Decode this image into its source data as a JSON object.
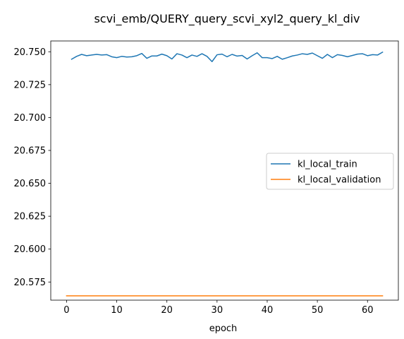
{
  "chart_data": {
    "type": "line",
    "title": "scvi_emb/QUERY_query_scvi_xyl2_query_kl_div",
    "xlabel": "epoch",
    "ylabel": "",
    "xlim": [
      -3.15,
      66.15
    ],
    "ylim": [
      20.5612,
      20.7582
    ],
    "xticks": [
      0,
      10,
      20,
      30,
      40,
      50,
      60
    ],
    "yticks": [
      20.575,
      20.6,
      20.625,
      20.65,
      20.675,
      20.7,
      20.725,
      20.75
    ],
    "ytick_labels": [
      "20.575",
      "20.600",
      "20.625",
      "20.650",
      "20.675",
      "20.700",
      "20.725",
      "20.750"
    ],
    "grid": false,
    "legend_position": "center-right",
    "series": [
      {
        "name": "kl_local_train",
        "color": "#1f77b4",
        "x": [
          1,
          2,
          3,
          4,
          5,
          6,
          7,
          8,
          9,
          10,
          11,
          12,
          13,
          14,
          15,
          16,
          17,
          18,
          19,
          20,
          21,
          22,
          23,
          24,
          25,
          26,
          27,
          28,
          29,
          30,
          31,
          32,
          33,
          34,
          35,
          36,
          37,
          38,
          39,
          40,
          41,
          42,
          43,
          44,
          45,
          46,
          47,
          48,
          49,
          50,
          51,
          52,
          53,
          54,
          55,
          56,
          57,
          58,
          59,
          60,
          61,
          62,
          63
        ],
        "y": [
          20.7443,
          20.7465,
          20.748,
          20.747,
          20.7475,
          20.748,
          20.7475,
          20.7478,
          20.7462,
          20.7455,
          20.7465,
          20.746,
          20.7462,
          20.747,
          20.7487,
          20.745,
          20.7468,
          20.7468,
          20.7482,
          20.747,
          20.7445,
          20.7485,
          20.7475,
          20.7455,
          20.7475,
          20.7465,
          20.7485,
          20.7465,
          20.7425,
          20.7477,
          20.7482,
          20.7462,
          20.748,
          20.7467,
          20.7472,
          20.7445,
          20.747,
          20.7492,
          20.7455,
          20.7455,
          20.7448,
          20.7465,
          20.7443,
          20.7455,
          20.7468,
          20.7475,
          20.7485,
          20.748,
          20.749,
          20.747,
          20.745,
          20.748,
          20.7455,
          20.7478,
          20.7472,
          20.7462,
          20.7472,
          20.7482,
          20.7485,
          20.747,
          20.7478,
          20.7475,
          20.7497
        ]
      },
      {
        "name": "kl_local_validation",
        "color": "#ff7f0e",
        "x": [
          0,
          63
        ],
        "y": [
          20.5645,
          20.5645
        ]
      }
    ]
  }
}
